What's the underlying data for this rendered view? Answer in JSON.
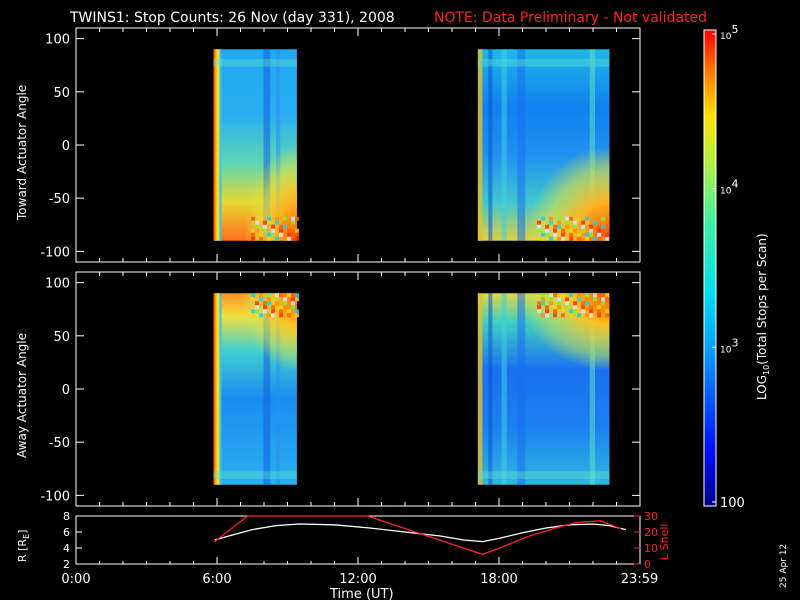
{
  "chart_data": [
    {
      "type": "heatmap",
      "title": "TWINS1: Stop Counts: 26 Nov (day 331), 2008",
      "note": "NOTE: Data Preliminary - Not validated",
      "ylabel": "Toward Actuator Angle",
      "ylim": [
        -110,
        110
      ],
      "yticks": [
        100,
        50,
        0,
        -50,
        -100
      ],
      "xlim": [
        0,
        24
      ],
      "data_blocks": [
        {
          "x_start": 5.85,
          "x_end": 9.4,
          "y_range": [
            -90,
            90
          ]
        },
        {
          "x_start": 17.1,
          "x_end": 22.7,
          "y_range": [
            -90,
            90
          ]
        }
      ]
    },
    {
      "type": "heatmap",
      "ylabel": "Away Actuator Angle",
      "ylim": [
        -110,
        110
      ],
      "yticks": [
        100,
        50,
        0,
        -50,
        -100
      ],
      "xlim": [
        0,
        24
      ],
      "data_blocks": [
        {
          "x_start": 5.85,
          "x_end": 9.4,
          "y_range": [
            -90,
            90
          ]
        },
        {
          "x_start": 17.1,
          "x_end": 22.7,
          "y_range": [
            -90,
            90
          ]
        }
      ]
    },
    {
      "type": "line",
      "ylabel": "R [R",
      "ylabel_sub": "E",
      "ylabel_end": "]",
      "ylim": [
        2,
        8
      ],
      "yticks": [
        "8",
        "6",
        "4",
        "2"
      ],
      "y2label": "L Shell",
      "y2lim": [
        0,
        30
      ],
      "y2ticks": [
        "30",
        "20",
        "10",
        "0"
      ],
      "xlabel": "Time (UT)",
      "xticks": [
        "0:00",
        "6:00",
        "12:00",
        "18:00",
        "23:59"
      ],
      "x_tick_values": [
        0,
        6,
        12,
        18,
        23.98
      ],
      "series": [
        {
          "name": "R",
          "color": "#ffffff",
          "x": [
            5.9,
            6.5,
            7.5,
            8.5,
            9.5,
            11,
            12.5,
            14,
            15.5,
            16.5,
            17.3,
            18,
            19,
            20,
            21,
            22,
            22.7,
            23.4
          ],
          "y": [
            5.0,
            5.5,
            6.3,
            6.8,
            7.0,
            6.9,
            6.5,
            6.0,
            5.5,
            5.0,
            4.8,
            5.2,
            5.9,
            6.5,
            6.9,
            7.0,
            6.8,
            6.3
          ]
        },
        {
          "name": "L Shell",
          "color": "#ff2020",
          "x": [
            5.9,
            7.3,
            12.4,
            17.3,
            18.2,
            19.2,
            20.3,
            21.3,
            22.3,
            23.2
          ],
          "y": [
            14,
            30,
            30,
            6,
            11,
            17,
            22,
            26,
            27,
            22
          ]
        }
      ]
    }
  ],
  "colorbar": {
    "label": "LOG10(Total Stops per Scan)",
    "label_prefix": "LOG",
    "label_sub": "10",
    "label_suffix": "(Total Stops per Scan)",
    "ticks": [
      {
        "base": "10",
        "exp": "5"
      },
      {
        "base": "10",
        "exp": "4"
      },
      {
        "base": "10",
        "exp": "3"
      },
      {
        "base": "100",
        "exp": ""
      }
    ],
    "range": [
      100,
      100000
    ]
  },
  "footer_date": "25 Apr 12",
  "colors": {
    "red": "#ff2020",
    "white": "#ffffff",
    "black": "#000000"
  }
}
